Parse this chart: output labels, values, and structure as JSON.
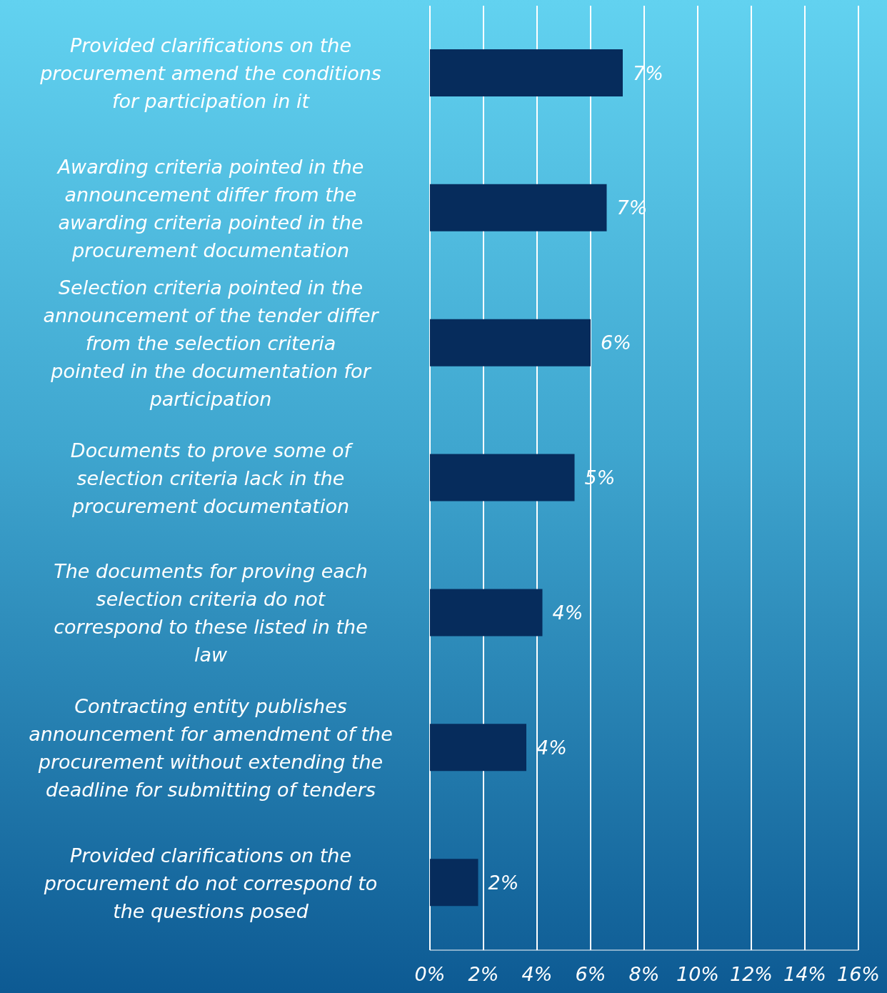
{
  "chart_data": {
    "type": "bar",
    "orientation": "horizontal",
    "categories": [
      "Provided clarifications on the procurement amend the conditions for participation in it",
      "Awarding criteria pointed in the announcement differ from the awarding criteria pointed in the procurement documentation",
      "Selection criteria pointed in the announcement of the tender differ from the selection criteria pointed in the documentation for participation",
      "Documents to prove some of selection criteria lack in the procurement documentation",
      "The documents for proving each selection criteria do not correspond to these listed in the law",
      "Contracting entity publishes announcement for amendment of the procurement without extending the deadline for submitting of tenders",
      "Provided clarifications on the procurement do not correspond to the questions posed"
    ],
    "values": [
      7.2,
      6.6,
      6.0,
      5.4,
      4.2,
      3.6,
      1.8
    ],
    "value_labels": [
      "7%",
      "7%",
      "6%",
      "5%",
      "4%",
      "4%",
      "2%"
    ],
    "color": "#062c5c",
    "xlim": [
      0,
      16
    ],
    "xticks": [
      {
        "value": 0,
        "label": "0%"
      },
      {
        "value": 2,
        "label": "2%"
      },
      {
        "value": 4,
        "label": "4%"
      },
      {
        "value": 6,
        "label": "6%"
      },
      {
        "value": 8,
        "label": "8%"
      },
      {
        "value": 10,
        "label": "10%"
      },
      {
        "value": 12,
        "label": "12%"
      },
      {
        "value": 14,
        "label": "14%"
      },
      {
        "value": 16,
        "label": "16%"
      }
    ],
    "grid": "x"
  }
}
